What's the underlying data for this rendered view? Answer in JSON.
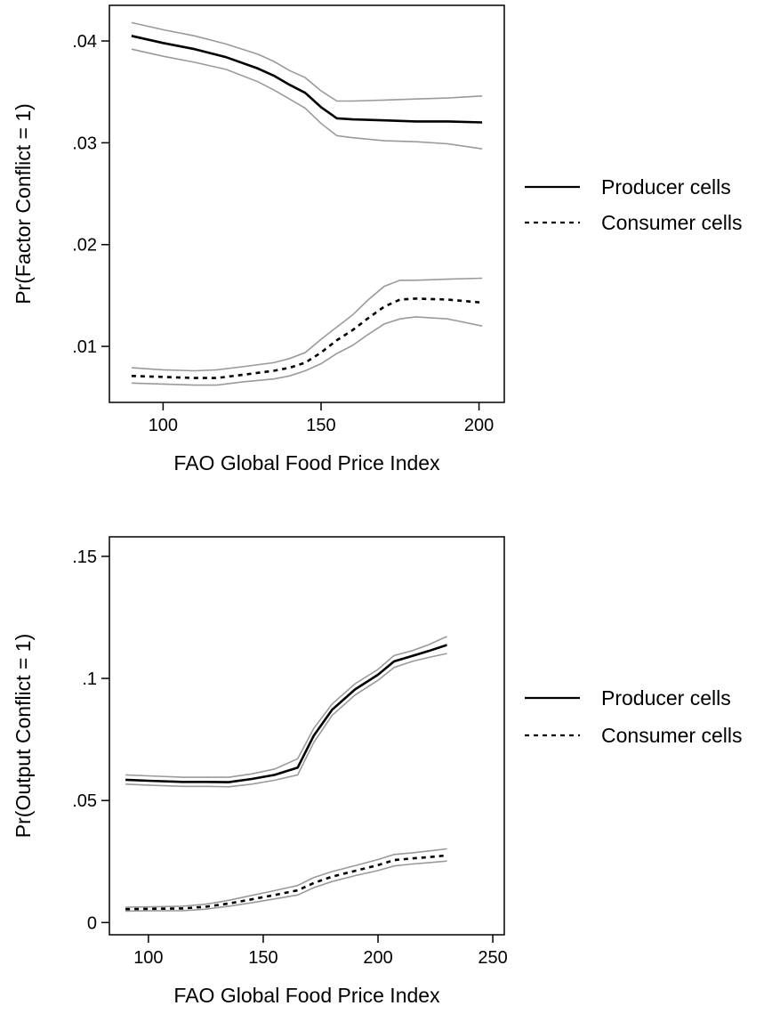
{
  "chart_data": [
    {
      "type": "line",
      "title": "",
      "xlabel": "FAO Global Food Price Index",
      "ylabel": "Pr(Factor Conflict = 1)",
      "xlim": [
        83,
        208
      ],
      "ylim": [
        0.0045,
        0.0435
      ],
      "xticks": [
        100,
        150,
        200
      ],
      "xtick_labels": [
        "100",
        "150",
        "200"
      ],
      "yticks": [
        0.01,
        0.02,
        0.03,
        0.04
      ],
      "ytick_labels": [
        ".01",
        ".02",
        ".03",
        ".04"
      ],
      "grid": false,
      "legend_position": "right",
      "band_color": "#9a9a9a",
      "line_color": "#000000",
      "series": [
        {
          "name": "Producer cells",
          "style": "solid",
          "x": [
            90,
            100,
            110,
            120,
            130,
            135,
            140,
            145,
            150,
            155,
            160,
            170,
            180,
            190,
            201
          ],
          "y": [
            0.0405,
            0.0398,
            0.0392,
            0.0384,
            0.0373,
            0.0366,
            0.0357,
            0.0349,
            0.0335,
            0.0324,
            0.0323,
            0.0322,
            0.0321,
            0.0321,
            0.032
          ],
          "upper": [
            0.0418,
            0.0411,
            0.0405,
            0.0397,
            0.0387,
            0.038,
            0.0371,
            0.0364,
            0.0351,
            0.0341,
            0.0341,
            0.0342,
            0.0343,
            0.0344,
            0.0346
          ],
          "lower": [
            0.0392,
            0.0385,
            0.0379,
            0.0372,
            0.036,
            0.0352,
            0.0343,
            0.0334,
            0.0319,
            0.0307,
            0.0305,
            0.0302,
            0.0301,
            0.0299,
            0.0294
          ]
        },
        {
          "name": "Consumer cells",
          "style": "dashed",
          "x": [
            90,
            100,
            110,
            117,
            125,
            135,
            140,
            145,
            150,
            155,
            160,
            165,
            170,
            175,
            180,
            190,
            201
          ],
          "y": [
            0.0071,
            0.007,
            0.0069,
            0.0069,
            0.0072,
            0.0076,
            0.0079,
            0.0084,
            0.0094,
            0.0106,
            0.0116,
            0.0128,
            0.0139,
            0.0146,
            0.0147,
            0.0146,
            0.0143
          ],
          "upper": [
            0.0079,
            0.0077,
            0.0076,
            0.0077,
            0.008,
            0.0084,
            0.0088,
            0.0094,
            0.0107,
            0.0119,
            0.0131,
            0.0146,
            0.0159,
            0.0165,
            0.0165,
            0.0166,
            0.0167
          ],
          "lower": [
            0.0064,
            0.0063,
            0.0062,
            0.0062,
            0.0065,
            0.0068,
            0.0071,
            0.0076,
            0.0083,
            0.0093,
            0.0101,
            0.0112,
            0.0122,
            0.0127,
            0.0129,
            0.0127,
            0.012
          ]
        }
      ]
    },
    {
      "type": "line",
      "title": "",
      "xlabel": "FAO Global Food Price Index",
      "ylabel": "Pr(Output Conflict = 1)",
      "xlim": [
        83,
        255
      ],
      "ylim": [
        -0.005,
        0.158
      ],
      "xticks": [
        100,
        150,
        200,
        250
      ],
      "xtick_labels": [
        "100",
        "150",
        "200",
        "250"
      ],
      "yticks": [
        0,
        0.05,
        0.1,
        0.15
      ],
      "ytick_labels": [
        "0",
        ".05",
        ".1",
        ".15"
      ],
      "grid": false,
      "legend_position": "right",
      "band_color": "#9a9a9a",
      "line_color": "#000000",
      "series": [
        {
          "name": "Producer cells",
          "style": "solid",
          "x": [
            90,
            100,
            115,
            125,
            135,
            145,
            155,
            165,
            172,
            180,
            190,
            200,
            207,
            215,
            222,
            230
          ],
          "y": [
            0.0585,
            0.0581,
            0.0576,
            0.0576,
            0.0575,
            0.0588,
            0.0605,
            0.0635,
            0.0765,
            0.0872,
            0.0955,
            0.1015,
            0.107,
            0.1092,
            0.1112,
            0.1137
          ],
          "upper": [
            0.0605,
            0.0601,
            0.0595,
            0.0595,
            0.0595,
            0.0609,
            0.0629,
            0.0671,
            0.0795,
            0.0895,
            0.0978,
            0.1037,
            0.1094,
            0.1114,
            0.1138,
            0.1172
          ],
          "lower": [
            0.0567,
            0.0563,
            0.0558,
            0.0558,
            0.0556,
            0.0567,
            0.0583,
            0.0605,
            0.0737,
            0.0849,
            0.0932,
            0.0992,
            0.1045,
            0.107,
            0.1086,
            0.1102
          ]
        },
        {
          "name": "Consumer cells",
          "style": "dashed",
          "x": [
            90,
            100,
            115,
            125,
            135,
            145,
            155,
            165,
            172,
            180,
            190,
            200,
            207,
            215,
            222,
            230
          ],
          "y": [
            0.0055,
            0.0056,
            0.0058,
            0.0065,
            0.0078,
            0.0095,
            0.0113,
            0.0132,
            0.0162,
            0.0188,
            0.0212,
            0.0235,
            0.0256,
            0.0263,
            0.0268,
            0.0275
          ],
          "upper": [
            0.0063,
            0.0064,
            0.0067,
            0.0075,
            0.0091,
            0.0111,
            0.0131,
            0.0152,
            0.0184,
            0.0209,
            0.0233,
            0.0258,
            0.0279,
            0.0286,
            0.0293,
            0.0302
          ],
          "lower": [
            0.0047,
            0.0048,
            0.0049,
            0.0055,
            0.0067,
            0.0081,
            0.0097,
            0.0113,
            0.0143,
            0.0168,
            0.0192,
            0.0213,
            0.0232,
            0.024,
            0.0245,
            0.0252
          ]
        }
      ]
    }
  ]
}
